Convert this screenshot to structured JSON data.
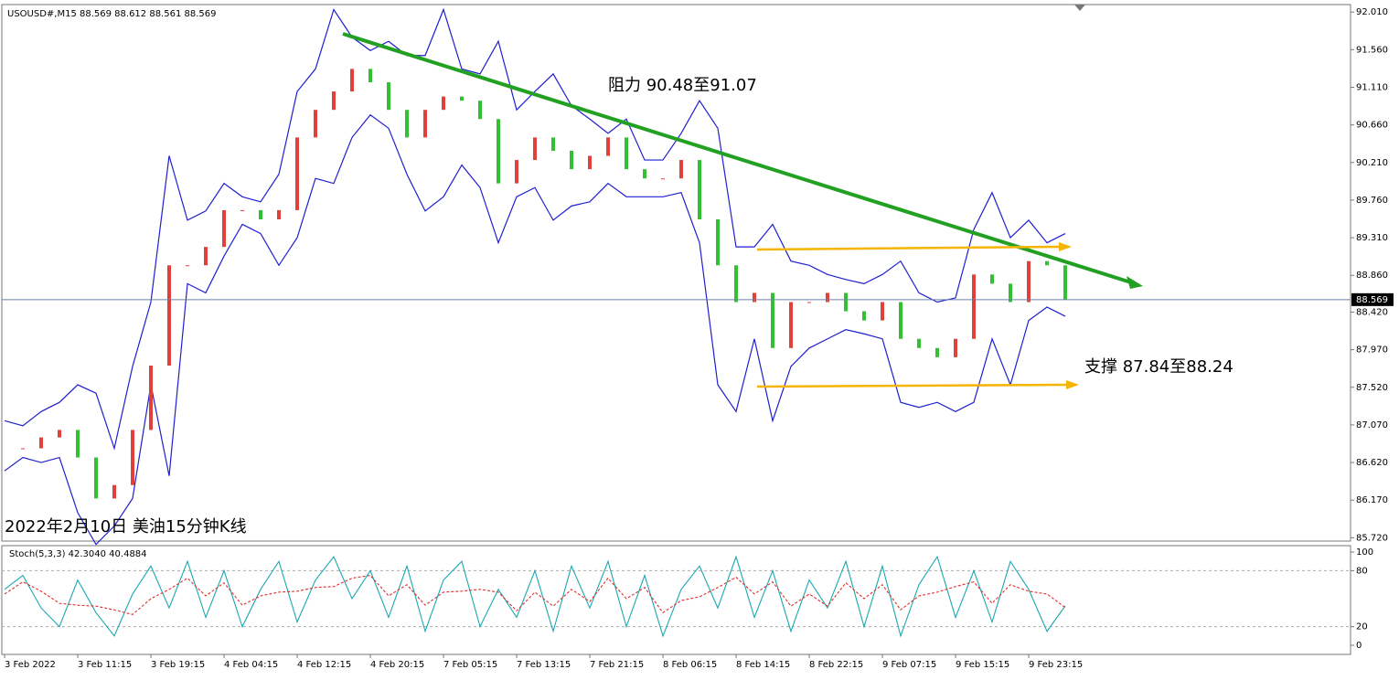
{
  "chart_data": [
    {
      "type": "candlestick",
      "title": "USOUSD#,M15 88.569 88.612 88.561 88.569",
      "ylim": [
        85.68,
        92.1
      ],
      "yticks": [
        {
          "value": 92.01,
          "label": "92.010"
        },
        {
          "value": 91.56,
          "label": "91.560"
        },
        {
          "value": 91.11,
          "label": "91.110"
        },
        {
          "value": 90.66,
          "label": "90.660"
        },
        {
          "value": 90.21,
          "label": "90.210"
        },
        {
          "value": 89.76,
          "label": "89.760"
        },
        {
          "value": 89.31,
          "label": "89.310"
        },
        {
          "value": 88.86,
          "label": "88.860"
        },
        {
          "value": 88.42,
          "label": "88.420"
        },
        {
          "value": 87.97,
          "label": "87.970"
        },
        {
          "value": 87.52,
          "label": "87.520"
        },
        {
          "value": 87.07,
          "label": "87.070"
        },
        {
          "value": 86.62,
          "label": "86.620"
        },
        {
          "value": 86.17,
          "label": "86.170"
        },
        {
          "value": 85.72,
          "label": "85.720"
        }
      ],
      "current_price": 88.569,
      "up_color": "#e0403a",
      "down_color": "#33c033",
      "series": [
        {
          "color": "#e0403a",
          "values": [
            86.79,
            86.79,
            86.92,
            87.01,
            86.68,
            86.19,
            86.35,
            87.01,
            87.78,
            88.98,
            88.98,
            89.2,
            89.64,
            89.64,
            89.53,
            89.64,
            90.51,
            90.84,
            91.06,
            91.33,
            91.17,
            90.84,
            90.51,
            90.84,
            91.0,
            90.95,
            90.73,
            89.96,
            90.24,
            90.51,
            90.35,
            90.13,
            90.29,
            90.51,
            90.13,
            90.02,
            90.02,
            90.24,
            89.53,
            88.98,
            88.54,
            88.65,
            87.99,
            88.54,
            88.54,
            88.65,
            88.43,
            88.32,
            88.54,
            88.1,
            87.99,
            87.88,
            88.1,
            88.87,
            88.76,
            88.54,
            89.03,
            88.98,
            88.57
          ]
        },
        {
          "color": "#1f1fd0",
          "values": [
            87.12,
            87.06,
            87.23,
            87.34,
            87.55,
            87.45,
            86.79,
            87.77,
            88.54,
            90.29,
            89.52,
            89.63,
            89.96,
            89.8,
            89.74,
            90.07,
            91.06,
            91.33,
            92.04,
            91.71,
            91.55,
            91.66,
            91.49,
            91.49,
            92.04,
            91.33,
            91.27,
            91.66,
            90.84,
            91.06,
            91.27,
            90.89,
            90.73,
            90.56,
            90.73,
            90.24,
            90.24,
            90.56,
            90.95,
            90.62,
            89.2,
            89.2,
            89.47,
            89.03,
            88.98,
            88.87,
            88.81,
            88.76,
            88.87,
            89.03,
            88.65,
            88.54,
            88.59,
            89.41,
            89.85,
            89.31,
            89.52,
            89.25,
            89.36
          ]
        },
        {
          "color": "#1f1fd0",
          "values": [
            86.52,
            86.68,
            86.62,
            86.68,
            86.02,
            85.64,
            85.86,
            86.19,
            87.55,
            86.46,
            88.76,
            88.65,
            89.09,
            89.47,
            89.36,
            88.98,
            89.31,
            90.02,
            89.96,
            90.51,
            90.78,
            90.62,
            90.07,
            89.63,
            89.8,
            90.18,
            89.91,
            89.25,
            89.8,
            89.91,
            89.52,
            89.69,
            89.74,
            89.96,
            89.8,
            89.8,
            89.8,
            89.85,
            89.25,
            87.55,
            87.23,
            88.1,
            87.12,
            87.77,
            87.99,
            88.1,
            88.21,
            88.16,
            88.1,
            87.34,
            87.28,
            87.34,
            87.23,
            87.34,
            88.1,
            87.55,
            88.32,
            88.48,
            88.37
          ]
        }
      ],
      "annotations": [
        "阻力 90.48至91.07",
        "支撑 87.84至88.24",
        "2022年2月10日 美油15分钟K线"
      ]
    },
    {
      "type": "line",
      "title": "Stoch(5,3,3) 42.3040 40.4884",
      "ylim": [
        -9.8,
        106.9
      ],
      "yticks": [
        100,
        80,
        20,
        0
      ],
      "categories": [
        "3 Feb 2022",
        null,
        null,
        null,
        "3 Feb 11:15",
        null,
        null,
        null,
        "3 Feb 19:15",
        null,
        null,
        null,
        "4 Feb 04:15",
        null,
        null,
        null,
        "4 Feb 12:15",
        null,
        null,
        null,
        "4 Feb 20:15",
        null,
        null,
        null,
        "7 Feb 05:15",
        null,
        null,
        null,
        "7 Feb 13:15",
        null,
        null,
        null,
        "7 Feb 21:15",
        null,
        null,
        null,
        "8 Feb 06:15",
        null,
        null,
        null,
        "8 Feb 14:15",
        null,
        null,
        null,
        "8 Feb 22:15",
        null,
        null,
        null,
        "9 Feb 07:15",
        null,
        null,
        null,
        "9 Feb 15:15",
        null,
        null,
        null,
        "9 Feb 23:15",
        null,
        null
      ],
      "series": [
        {
          "color": "#1aa8b0",
          "values": [
            60,
            75,
            40,
            20,
            70,
            35,
            10,
            55,
            85,
            40,
            90,
            30,
            80,
            20,
            60,
            90,
            25,
            70,
            95,
            50,
            80,
            30,
            85,
            15,
            70,
            90,
            20,
            60,
            30,
            80,
            15,
            85,
            40,
            90,
            20,
            75,
            10,
            60,
            85,
            40,
            95,
            30,
            80,
            15,
            70,
            40,
            90,
            20,
            85,
            10,
            65,
            95,
            30,
            80,
            25,
            90,
            60,
            15,
            42.304
          ]
        },
        {
          "color": "#e03030",
          "values": [
            55,
            68,
            58,
            45,
            43,
            42,
            38,
            33,
            50,
            60,
            72,
            53,
            67,
            43,
            53,
            57,
            58,
            62,
            63,
            72,
            75,
            53,
            65,
            43,
            57,
            58,
            60,
            57,
            37,
            57,
            42,
            60,
            47,
            72,
            50,
            62,
            35,
            48,
            52,
            62,
            73,
            55,
            68,
            42,
            55,
            42,
            67,
            50,
            65,
            38,
            53,
            57,
            63,
            68,
            45,
            65,
            58,
            55,
            40.4884
          ]
        }
      ]
    }
  ]
}
